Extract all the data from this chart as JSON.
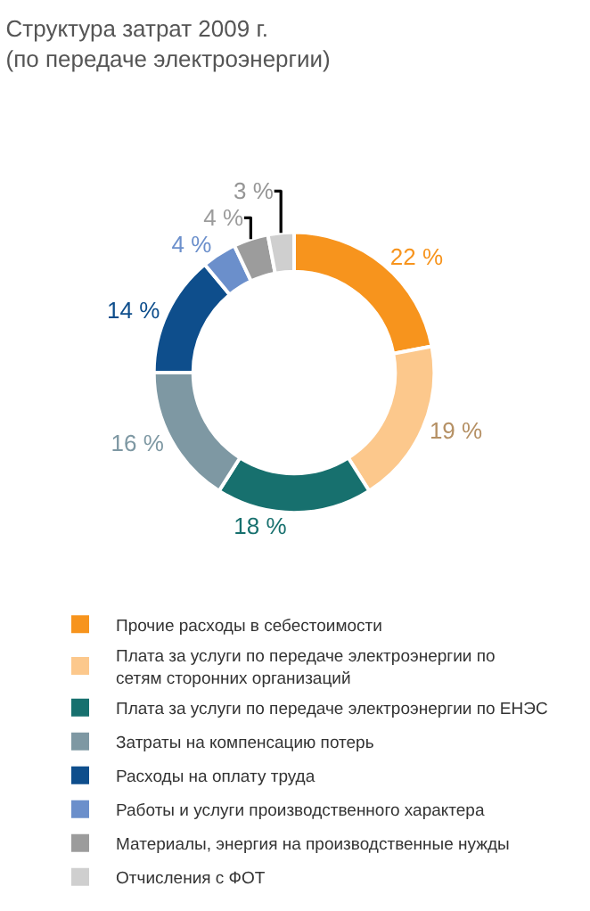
{
  "chart_data": {
    "type": "donut",
    "title": "Структура затрат 2009 г.",
    "subtitle": "(по передаче электроэнергии)",
    "categories": [
      "Прочие расходы в себестоимости",
      "Плата за услуги по передаче электроэнергии по сетям сторонних организаций",
      "Плата за услуги по передаче электроэнергии по ЕНЭС",
      "Затраты на компенсацию потерь",
      "Расходы на оплату труда",
      "Работы и услуги производственного характера",
      "Материалы, энергия на производственные нужды",
      "Отчисления с ФОТ"
    ],
    "values": [
      22,
      19,
      18,
      16,
      14,
      4,
      4,
      3
    ],
    "value_labels": [
      "22 %",
      "19 %",
      "18 %",
      "16 %",
      "14 %",
      "4 %",
      "4 %",
      "3 %"
    ],
    "colors": [
      "#f7941d",
      "#fcc88c",
      "#17706e",
      "#7e98a3",
      "#0e4e8c",
      "#6b8fcb",
      "#9c9c9c",
      "#cfcfcf"
    ],
    "legend": "bottom"
  }
}
